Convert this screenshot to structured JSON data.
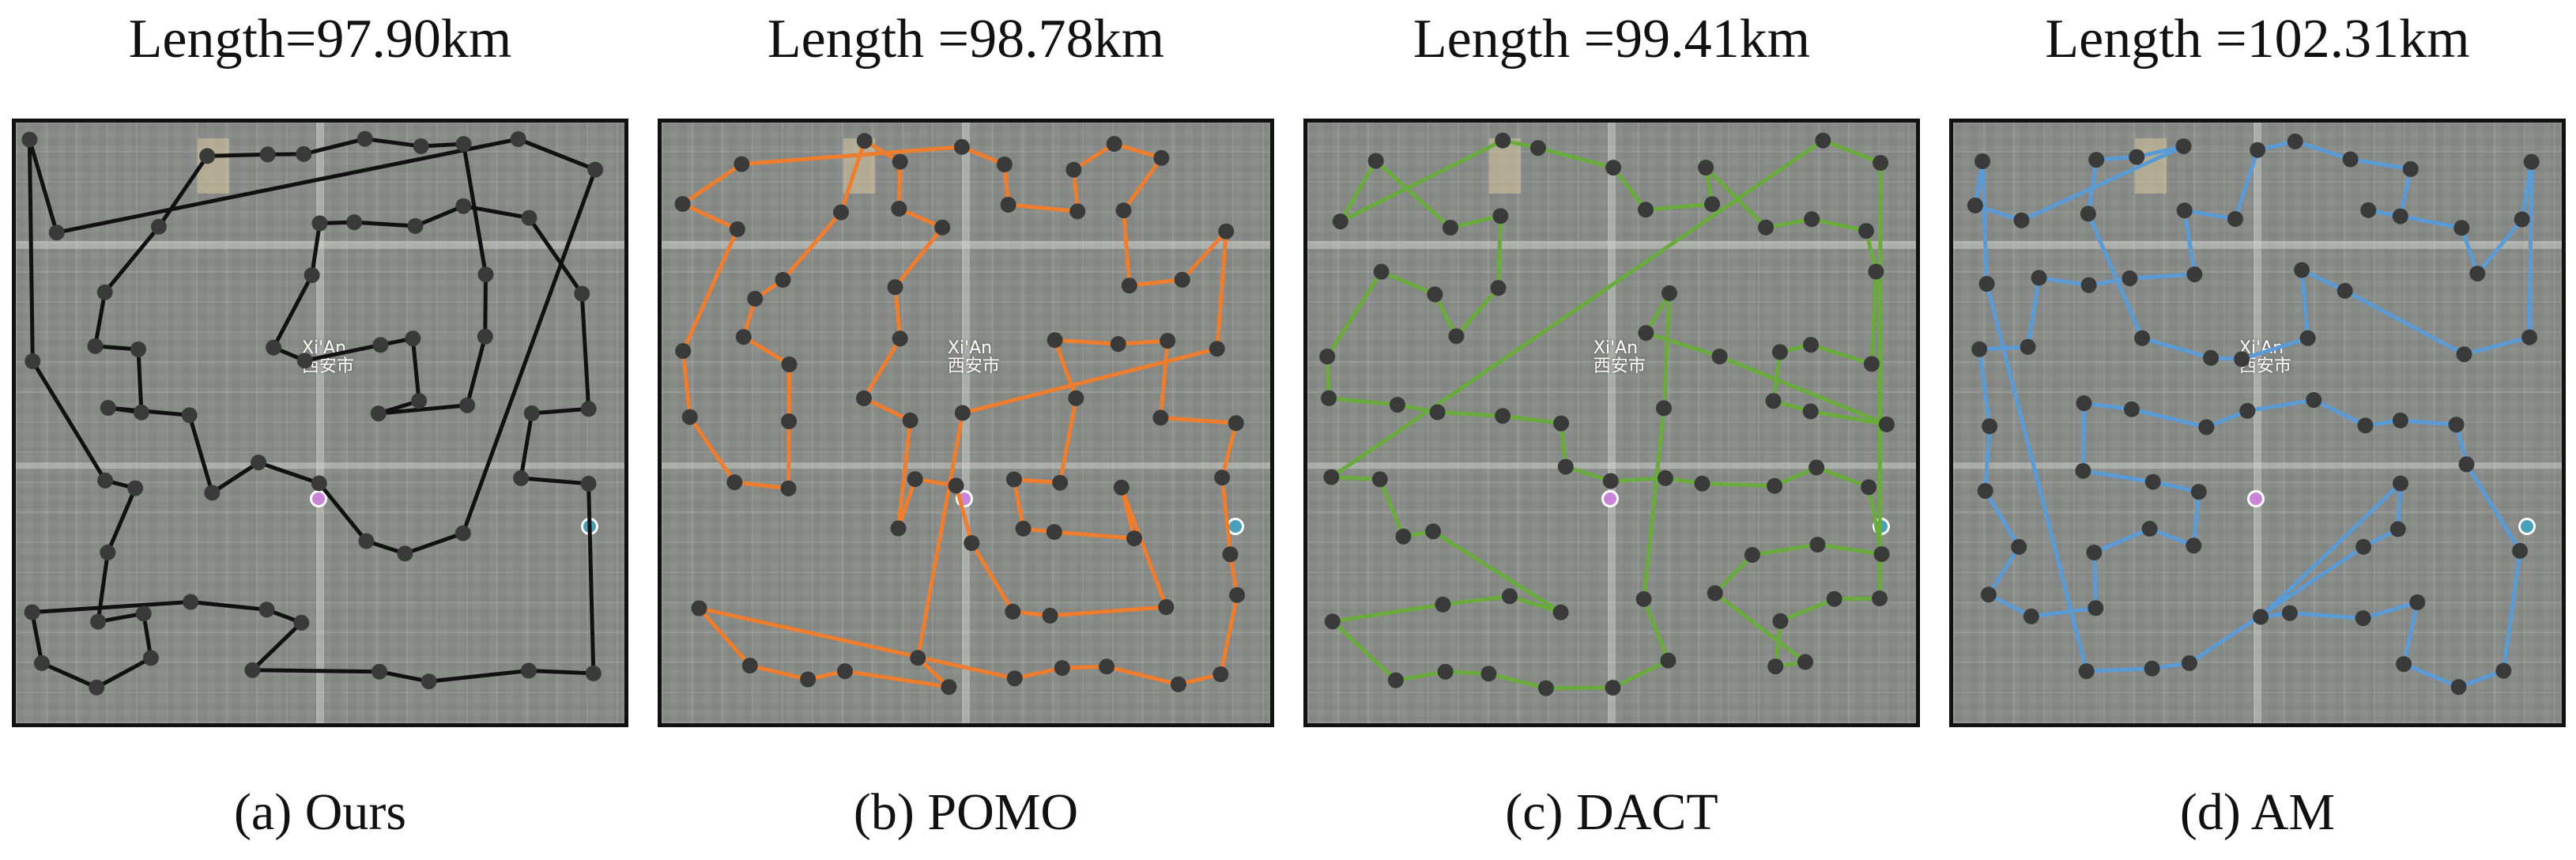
{
  "panels": [
    {
      "id": "a",
      "title": "Length=97.90km",
      "caption": "(a) Ours",
      "route_color": "#111111"
    },
    {
      "id": "b",
      "title": "Length =98.78km",
      "caption": "(b) POMO",
      "route_color": "#ee7d2d"
    },
    {
      "id": "c",
      "title": "Length =99.41km",
      "caption": "(c) DACT",
      "route_color": "#6aab3d"
    },
    {
      "id": "d",
      "title": "Length =102.31km",
      "caption": "(d) AM",
      "route_color": "#5a9bd5"
    }
  ],
  "map": {
    "city_label_en": "Xi'An",
    "city_label_zh": "西安市",
    "node_color": "#3a3a3a"
  }
}
